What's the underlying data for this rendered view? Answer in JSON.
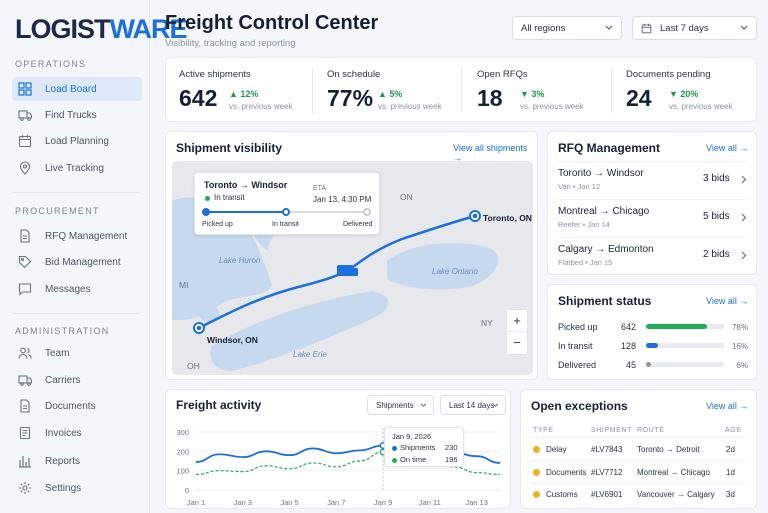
{
  "brand": {
    "logo_a": "LOGIST",
    "logo_b": "WARE",
    "accent": "#1c6fe0"
  },
  "sidebar": {
    "sections": [
      "OPERATIONS",
      "PROCUREMENT",
      "ADMINISTRATION"
    ],
    "items": [
      {
        "label": "Load Board",
        "icon": "grid-icon"
      },
      {
        "label": "Find Trucks",
        "icon": "truck-icon"
      },
      {
        "label": "Load Planning",
        "icon": "calendar-icon"
      },
      {
        "label": "Live Tracking",
        "icon": "location-pin-icon"
      },
      {
        "label": "RFQ Management",
        "icon": "document-icon"
      },
      {
        "label": "Bid Management",
        "icon": "tag-icon"
      },
      {
        "label": "Messages",
        "icon": "chat-icon"
      },
      {
        "label": "Team",
        "icon": "users-icon"
      },
      {
        "label": "Carriers",
        "icon": "truck-icon"
      },
      {
        "label": "Documents",
        "icon": "document-icon"
      },
      {
        "label": "Invoices",
        "icon": "invoice-icon"
      },
      {
        "label": "Reports",
        "icon": "bar-chart-icon"
      },
      {
        "label": "Settings",
        "icon": "gear-icon"
      }
    ]
  },
  "header": {
    "title": "Freight Control Center",
    "subtitle": "Visibility, tracking and reporting",
    "region_select": "All regions",
    "date_select": "Last 7 days"
  },
  "kpis": [
    {
      "label": "Active shipments",
      "value": "642",
      "delta": "▲ 12%",
      "delta_color": "#1b9a4a",
      "sub": "vs. previous week"
    },
    {
      "label": "On schedule",
      "value": "77%",
      "delta": "▲ 5%",
      "delta_color": "#1b9a4a",
      "sub": "vs. previous week"
    },
    {
      "label": "Open RFQs",
      "value": "18",
      "delta": "▼ 3%",
      "delta_color": "#1b9a4a",
      "sub": "vs. previous week"
    },
    {
      "label": "Documents pending",
      "value": "24",
      "delta": "▼ 20%",
      "delta_color": "#1b9a4a",
      "sub": "vs. previous week"
    }
  ],
  "visibility": {
    "title": "Shipment visibility",
    "link": "View all shipments →",
    "popup": {
      "route": "Toronto → Windsor",
      "status": "In transit",
      "eta_label": "ETA",
      "eta": "Jan 13, 4:30 PM",
      "steps": [
        "Picked up",
        "In transit",
        "Delivered"
      ]
    },
    "map_labels": {
      "on": "ON",
      "mi": "MI",
      "ny": "NY",
      "oh": "OH",
      "huron": "Lake Huron",
      "ontario": "Lake Ontario",
      "erie": "Lake Erie",
      "toronto": "Toronto, ON",
      "windsor": "Windsor, ON"
    },
    "zoom_in": "+",
    "zoom_out": "−"
  },
  "rfq": {
    "title": "RFQ Management",
    "link": "View all →",
    "rows": [
      {
        "route": "Toronto → Windsor",
        "type": "Van",
        "date": "Jan 12",
        "bids": "3 bids"
      },
      {
        "route": "Montreal → Chicago",
        "type": "Reefer",
        "date": "Jan 14",
        "bids": "5 bids"
      },
      {
        "route": "Calgary → Edmonton",
        "type": "Flatbed",
        "date": "Jan 15",
        "bids": "2 bids"
      }
    ]
  },
  "status": {
    "title": "Shipment status",
    "link": "View all →",
    "rows": [
      {
        "label": "Picked up",
        "count": "642",
        "pct": "78%",
        "fill": 0.78,
        "color": "#1fae55"
      },
      {
        "label": "In transit",
        "count": "128",
        "pct": "16%",
        "fill": 0.16,
        "color": "#1c6fe0"
      },
      {
        "label": "Delivered",
        "count": "45",
        "pct": "6%",
        "fill": 0.06,
        "color": "#8a94a5"
      }
    ]
  },
  "activity": {
    "title": "Freight activity",
    "select_metric": "Shipments",
    "select_range": "Last 14 days",
    "tooltip": {
      "date": "Jan 9, 2026",
      "rows": [
        {
          "label": "Shipments",
          "value": "230"
        },
        {
          "label": "On time",
          "value": "196"
        }
      ]
    }
  },
  "chart_data": {
    "type": "line",
    "x": [
      "Jan 1",
      "Jan 2",
      "Jan 3",
      "Jan 4",
      "Jan 5",
      "Jan 6",
      "Jan 7",
      "Jan 8",
      "Jan 9",
      "Jan 10",
      "Jan 11",
      "Jan 12",
      "Jan 13",
      "Jan 14"
    ],
    "xticks": [
      "Jan 1",
      "Jan 3",
      "Jan 5",
      "Jan 7",
      "Jan 9",
      "Jan 11",
      "Jan 13"
    ],
    "yticks": [
      "0",
      "100",
      "200",
      "300"
    ],
    "ylim": [
      0,
      300
    ],
    "series": [
      {
        "name": "Shipments",
        "color": "#1c6fe0",
        "values": [
          145,
          185,
          170,
          200,
          180,
          215,
          190,
          205,
          230,
          205,
          220,
          195,
          175,
          140
        ]
      },
      {
        "name": "On time",
        "color": "#1fae55",
        "values": [
          80,
          100,
          95,
          125,
          110,
          140,
          120,
          150,
          196,
          150,
          170,
          120,
          90,
          80
        ]
      }
    ]
  },
  "exceptions": {
    "title": "Open exceptions",
    "link": "View all →",
    "headers": [
      "TYPE",
      "SHIPMENT",
      "ROUTE",
      "AGE"
    ],
    "rows": [
      {
        "type": "Delay",
        "shipment": "#LV7843",
        "route": "Toronto → Detroit",
        "age": "2d"
      },
      {
        "type": "Documents",
        "shipment": "#LV7712",
        "route": "Montreal → Chicago",
        "age": "1d"
      },
      {
        "type": "Customs",
        "shipment": "#LV6901",
        "route": "Vancouver → Calgary",
        "age": "3d"
      }
    ]
  }
}
